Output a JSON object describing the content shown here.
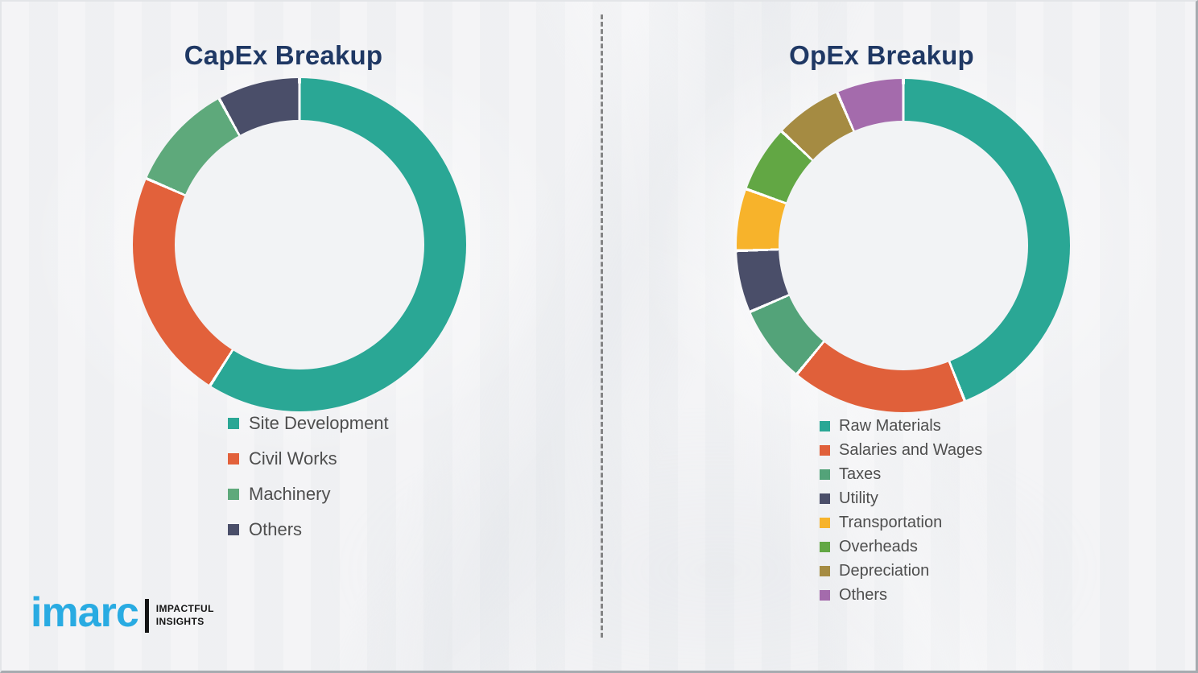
{
  "logo": {
    "brand": "imarc",
    "brand_color": "#29ABE2",
    "tagline_line1": "IMPACTFUL",
    "tagline_line2": "INSIGHTS"
  },
  "colors": {
    "title_text": "#1F3864",
    "legend_text": "#4E4E4E",
    "divider": "#6B6B6B",
    "background": "#F1F2F4"
  },
  "chart_data": [
    {
      "type": "pie",
      "variant": "donut",
      "title": "CapEx Breakup",
      "legend_position": "below",
      "start_angle_deg": 0,
      "direction": "clockwise",
      "units": "percent (estimated from arc lengths; no numeric labels shown)",
      "segments": [
        {
          "label": "Site Development",
          "value": 59,
          "color": "#2AA795"
        },
        {
          "label": "Civil Works",
          "value": 22.5,
          "color": "#E2613B"
        },
        {
          "label": "Machinery",
          "value": 10.5,
          "color": "#5EA97B"
        },
        {
          "label": "Others",
          "value": 8,
          "color": "#4A4E69"
        }
      ]
    },
    {
      "type": "pie",
      "variant": "donut",
      "title": "OpEx Breakup",
      "legend_position": "below",
      "start_angle_deg": 0,
      "direction": "clockwise",
      "units": "percent (estimated from arc lengths; no numeric labels shown)",
      "segments": [
        {
          "label": "Raw Materials",
          "value": 44,
          "color": "#2AA795"
        },
        {
          "label": "Salaries and Wages",
          "value": 17,
          "color": "#E0603A"
        },
        {
          "label": "Taxes",
          "value": 7.5,
          "color": "#53A379"
        },
        {
          "label": "Utility",
          "value": 6,
          "color": "#4A4E69"
        },
        {
          "label": "Transportation",
          "value": 6,
          "color": "#F7B32B"
        },
        {
          "label": "Overheads",
          "value": 6.5,
          "color": "#62A744"
        },
        {
          "label": "Depreciation",
          "value": 6.5,
          "color": "#A58B42"
        },
        {
          "label": "Others",
          "value": 6.5,
          "color": "#A46BAC"
        }
      ]
    }
  ]
}
